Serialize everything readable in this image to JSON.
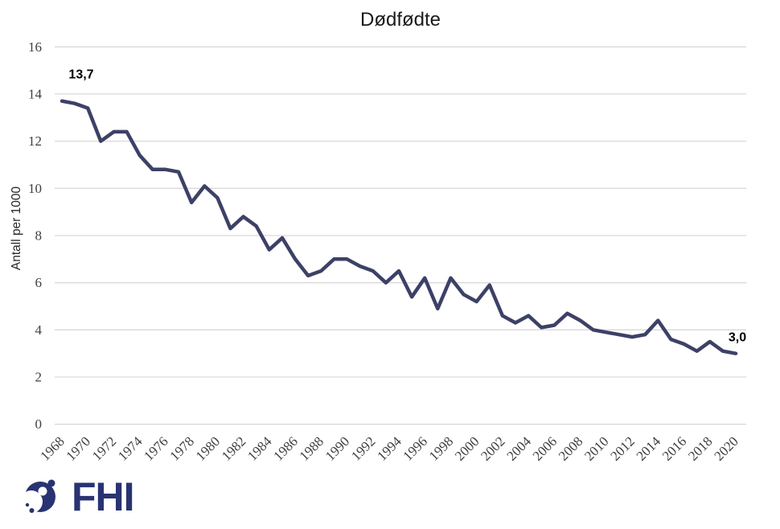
{
  "chart_data": {
    "type": "line",
    "title": "Dødfødte",
    "ylabel": "Antall per 1000",
    "xlabel": "",
    "ylim": [
      0,
      16
    ],
    "ytick_interval": 2,
    "yticks": [
      0,
      2,
      4,
      6,
      8,
      10,
      12,
      14,
      16
    ],
    "grid": "horizontal",
    "legend": "none",
    "x": [
      1968,
      1969,
      1970,
      1971,
      1972,
      1973,
      1974,
      1975,
      1976,
      1977,
      1978,
      1979,
      1980,
      1981,
      1982,
      1983,
      1984,
      1985,
      1986,
      1987,
      1988,
      1989,
      1990,
      1991,
      1992,
      1993,
      1994,
      1995,
      1996,
      1997,
      1998,
      1999,
      2000,
      2001,
      2002,
      2003,
      2004,
      2005,
      2006,
      2007,
      2008,
      2009,
      2010,
      2011,
      2012,
      2013,
      2014,
      2015,
      2016,
      2017,
      2018,
      2019,
      2020
    ],
    "values": [
      13.7,
      13.6,
      13.4,
      12.0,
      12.4,
      12.4,
      11.4,
      10.8,
      10.8,
      10.7,
      9.4,
      10.1,
      9.6,
      8.3,
      8.8,
      8.4,
      7.4,
      7.9,
      7.0,
      6.3,
      6.5,
      7.0,
      7.0,
      6.7,
      6.5,
      6.0,
      6.5,
      5.4,
      6.2,
      4.9,
      6.2,
      5.5,
      5.2,
      5.9,
      4.6,
      4.3,
      4.6,
      4.1,
      4.2,
      4.7,
      4.4,
      4.0,
      3.9,
      3.8,
      3.7,
      3.8,
      4.4,
      3.6,
      3.4,
      3.1,
      3.5,
      3.1,
      3.0
    ],
    "xtick_labels": [
      "1968",
      "1970",
      "1972",
      "1974",
      "1976",
      "1978",
      "1980",
      "1982",
      "1984",
      "1986",
      "1988",
      "1990",
      "1992",
      "1994",
      "1996",
      "1998",
      "2000",
      "2002",
      "2004",
      "2006",
      "2008",
      "2010",
      "2012",
      "2014",
      "2016",
      "2018",
      "2020"
    ],
    "annotations": [
      {
        "x": 1968,
        "text": "13,7"
      },
      {
        "x": 2020,
        "text": "3,0"
      }
    ],
    "line_color": "#3D4167",
    "gridline_color": "#D9D9D9",
    "tick_label_color": "#404040",
    "annotation_color": "#000000"
  },
  "branding": {
    "logo_text": "FHI",
    "logo_color": "#283372"
  }
}
